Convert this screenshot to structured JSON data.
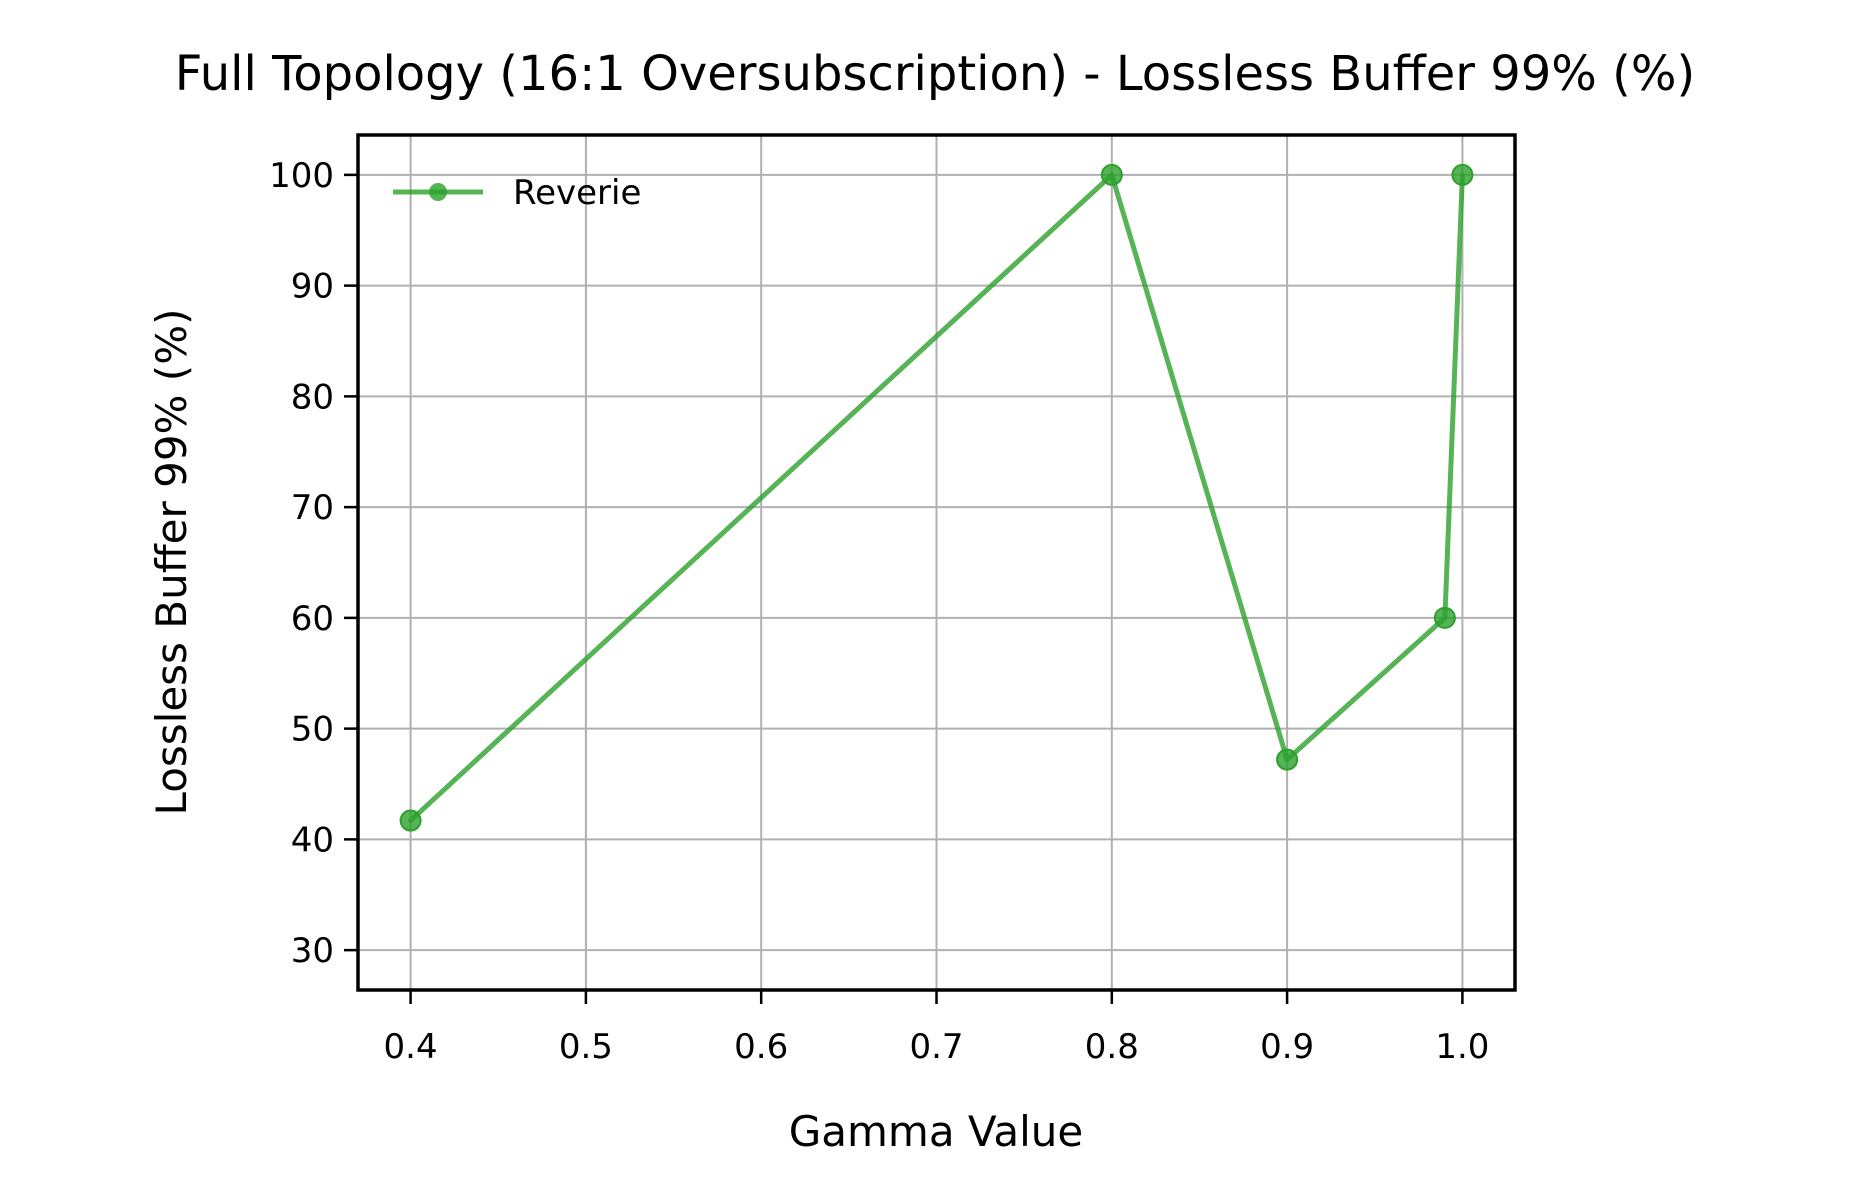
{
  "chart_data": {
    "type": "line",
    "title": "Full Topology (16:1 Oversubscription) - Lossless Buffer 99% (%)",
    "xlabel": "Gamma Value",
    "ylabel": "Lossless Buffer 99% (%)",
    "xlim": [
      0.37,
      1.03
    ],
    "ylim": [
      26.4,
      103.6
    ],
    "xticks": [
      0.4,
      0.5,
      0.6,
      0.7,
      0.8,
      0.9,
      1.0
    ],
    "xtick_labels": [
      "0.4",
      "0.5",
      "0.6",
      "0.7",
      "0.8",
      "0.9",
      "1.0"
    ],
    "yticks": [
      30,
      40,
      50,
      60,
      70,
      80,
      90,
      100
    ],
    "ytick_labels": [
      "30",
      "40",
      "50",
      "60",
      "70",
      "80",
      "90",
      "100"
    ],
    "grid": true,
    "legend_position": "upper-left",
    "series": [
      {
        "name": "Reverie",
        "color": "#2ca02c",
        "marker": "circle",
        "points": [
          {
            "x": 0.4,
            "y": 41.7
          },
          {
            "x": 0.8,
            "y": 100.0
          },
          {
            "x": 0.9,
            "y": 47.2
          },
          {
            "x": 0.99,
            "y": 60.0
          },
          {
            "x": 1.0,
            "y": 100.0
          }
        ]
      }
    ]
  }
}
